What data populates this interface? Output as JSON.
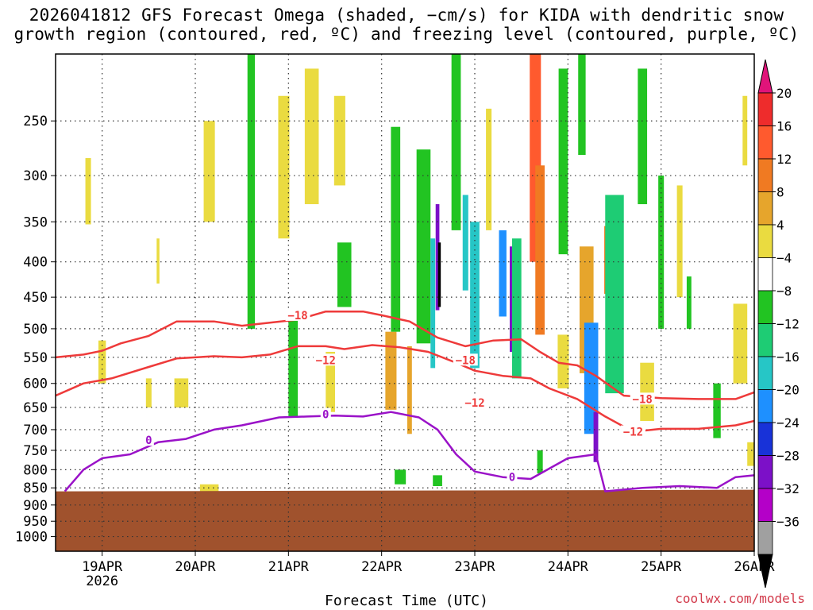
{
  "title": {
    "line1": "2026041812 GFS Forecast Omega (shaded, −cm/s) for KIDA with dendritic snow",
    "line2": "growth region (contoured, red, ºC) and freezing level (contoured, purple, ºC)"
  },
  "credit": "coolwx.com/models",
  "chart_data": {
    "type": "heatmap",
    "xlabel": "Forecast Time (UTC)",
    "ylabel": "",
    "x_ticks": [
      "19APR",
      "20APR",
      "21APR",
      "22APR",
      "23APR",
      "24APR",
      "25APR",
      "26APR"
    ],
    "x_tick_sub": [
      "2026",
      "",
      "",
      "",
      "",
      "",
      "",
      ""
    ],
    "x_range_days": [
      18.5,
      26.0
    ],
    "y_ticks": [
      250,
      300,
      350,
      400,
      450,
      500,
      550,
      600,
      650,
      700,
      750,
      800,
      850,
      900,
      950,
      1000
    ],
    "y_range_hpa": [
      200,
      1050
    ],
    "y_scale": "log-pressure",
    "terrain_top_hpa": 860,
    "grid": true,
    "colorbar": {
      "levels": [
        20,
        16,
        12,
        8,
        4,
        -4,
        -8,
        -12,
        -16,
        -20,
        -24,
        -28,
        -32,
        -36
      ],
      "labels": [
        "20",
        "16",
        "12",
        "8",
        "4",
        "−4",
        "−8",
        "−12",
        "−16",
        "−20",
        "−24",
        "−28",
        "−32",
        "−36"
      ],
      "colors": [
        "#e0147a",
        "#ee2c2c",
        "#ff5a2e",
        "#f07a22",
        "#e6a52c",
        "#eadb40",
        "#ffffff",
        "#22c422",
        "#1ecc74",
        "#26c6c6",
        "#1e90ff",
        "#1832d8",
        "#7c10c8",
        "#b400c8",
        "#a0a0a0",
        "#000000"
      ]
    },
    "series": [
      {
        "name": "-18",
        "color": "#ee3a3a",
        "points": [
          [
            18.5,
            550
          ],
          [
            18.8,
            545
          ],
          [
            19.0,
            538
          ],
          [
            19.2,
            525
          ],
          [
            19.5,
            512
          ],
          [
            19.8,
            488
          ],
          [
            20.2,
            488
          ],
          [
            20.5,
            495
          ],
          [
            20.8,
            490
          ],
          [
            21.1,
            485
          ],
          [
            21.4,
            472
          ],
          [
            21.8,
            472
          ],
          [
            22.0,
            478
          ],
          [
            22.3,
            488
          ],
          [
            22.6,
            515
          ],
          [
            22.9,
            530
          ],
          [
            23.2,
            520
          ],
          [
            23.5,
            518
          ],
          [
            23.7,
            540
          ],
          [
            23.9,
            560
          ],
          [
            24.1,
            565
          ],
          [
            24.3,
            585
          ],
          [
            24.6,
            625
          ],
          [
            25.0,
            630
          ],
          [
            25.4,
            632
          ],
          [
            25.8,
            632
          ],
          [
            26.0,
            618
          ]
        ]
      },
      {
        "name": "-12",
        "color": "#ee3a3a",
        "points": [
          [
            18.5,
            625
          ],
          [
            18.8,
            600
          ],
          [
            19.1,
            590
          ],
          [
            19.5,
            568
          ],
          [
            19.8,
            552
          ],
          [
            20.2,
            548
          ],
          [
            20.5,
            550
          ],
          [
            20.8,
            545
          ],
          [
            21.1,
            530
          ],
          [
            21.4,
            530
          ],
          [
            21.6,
            535
          ],
          [
            21.9,
            528
          ],
          [
            22.2,
            532
          ],
          [
            22.5,
            540
          ],
          [
            22.8,
            560
          ],
          [
            23.0,
            575
          ],
          [
            23.3,
            585
          ],
          [
            23.6,
            590
          ],
          [
            23.8,
            610
          ],
          [
            24.1,
            632
          ],
          [
            24.4,
            670
          ],
          [
            24.7,
            705
          ],
          [
            25.0,
            698
          ],
          [
            25.4,
            698
          ],
          [
            25.8,
            690
          ],
          [
            26.0,
            680
          ]
        ]
      },
      {
        "name": "0",
        "color": "#9a12c8",
        "points": [
          [
            18.6,
            860
          ],
          [
            18.8,
            800
          ],
          [
            19.0,
            770
          ],
          [
            19.3,
            760
          ],
          [
            19.6,
            730
          ],
          [
            19.9,
            722
          ],
          [
            20.2,
            700
          ],
          [
            20.5,
            690
          ],
          [
            20.9,
            672
          ],
          [
            21.2,
            670
          ],
          [
            21.5,
            668
          ],
          [
            21.8,
            670
          ],
          [
            22.1,
            660
          ],
          [
            22.4,
            672
          ],
          [
            22.6,
            700
          ],
          [
            22.8,
            760
          ],
          [
            23.0,
            805
          ],
          [
            23.3,
            820
          ],
          [
            23.6,
            825
          ],
          [
            24.0,
            770
          ],
          [
            24.3,
            760
          ],
          [
            24.4,
            860
          ],
          [
            24.8,
            850
          ],
          [
            25.2,
            845
          ],
          [
            25.6,
            850
          ],
          [
            25.8,
            820
          ],
          [
            26.0,
            815
          ]
        ]
      }
    ],
    "contour_labels": [
      {
        "text": "−18",
        "day": 21.1,
        "p": 478
      },
      {
        "text": "−18",
        "day": 22.9,
        "p": 555
      },
      {
        "text": "−18",
        "day": 24.8,
        "p": 632
      },
      {
        "text": "−12",
        "day": 21.4,
        "p": 555
      },
      {
        "text": "−12",
        "day": 23.0,
        "p": 640
      },
      {
        "text": "−12",
        "day": 24.7,
        "p": 705
      },
      {
        "text": "0",
        "day": 19.5,
        "p": 725
      },
      {
        "text": "0",
        "day": 21.4,
        "p": 665
      },
      {
        "text": "0",
        "day": 23.4,
        "p": 820
      }
    ],
    "shaded_cells": [
      [
        18.85,
        318,
        0.06,
        70,
        5
      ],
      [
        19.0,
        560,
        0.08,
        80,
        5
      ],
      [
        19.5,
        620,
        0.06,
        60,
        5
      ],
      [
        19.6,
        400,
        0.03,
        60,
        5
      ],
      [
        19.85,
        620,
        0.15,
        60,
        5
      ],
      [
        20.15,
        300,
        0.12,
        100,
        5
      ],
      [
        20.15,
        860,
        0.2,
        40,
        5
      ],
      [
        20.4,
        380,
        0.12,
        260,
        6
      ],
      [
        20.4,
        640,
        0.08,
        120,
        6
      ],
      [
        20.6,
        350,
        0.08,
        300,
        7
      ],
      [
        20.95,
        300,
        0.12,
        140,
        5
      ],
      [
        20.95,
        520,
        0.1,
        120,
        6
      ],
      [
        21.05,
        570,
        0.1,
        200,
        7
      ],
      [
        21.25,
        270,
        0.15,
        120,
        5
      ],
      [
        21.35,
        480,
        0.2,
        150,
        6
      ],
      [
        21.45,
        600,
        0.1,
        120,
        5
      ],
      [
        21.55,
        270,
        0.12,
        80,
        5
      ],
      [
        21.6,
        420,
        0.15,
        90,
        7
      ],
      [
        21.7,
        680,
        0.12,
        90,
        6
      ],
      [
        22.0,
        520,
        0.1,
        110,
        6
      ],
      [
        22.1,
        580,
        0.12,
        150,
        4
      ],
      [
        22.15,
        380,
        0.1,
        250,
        7
      ],
      [
        22.3,
        620,
        0.05,
        180,
        4
      ],
      [
        22.45,
        400,
        0.15,
        250,
        7
      ],
      [
        22.55,
        470,
        0.05,
        200,
        9
      ],
      [
        22.6,
        400,
        0.04,
        140,
        12
      ],
      [
        22.62,
        420,
        0.03,
        90,
        15
      ],
      [
        22.8,
        280,
        0.1,
        160,
        7
      ],
      [
        22.9,
        380,
        0.06,
        120,
        9
      ],
      [
        23.0,
        460,
        0.1,
        220,
        9
      ],
      [
        23.15,
        300,
        0.06,
        120,
        5
      ],
      [
        23.3,
        420,
        0.08,
        120,
        10
      ],
      [
        23.4,
        460,
        0.05,
        160,
        12
      ],
      [
        23.45,
        480,
        0.1,
        220,
        8
      ],
      [
        23.65,
        300,
        0.12,
        200,
        2
      ],
      [
        23.7,
        400,
        0.1,
        220,
        3
      ],
      [
        23.95,
        300,
        0.1,
        180,
        7
      ],
      [
        23.95,
        560,
        0.12,
        100,
        5
      ],
      [
        24.15,
        240,
        0.08,
        80,
        7
      ],
      [
        24.2,
        480,
        0.15,
        200,
        4
      ],
      [
        24.25,
        600,
        0.15,
        220,
        10
      ],
      [
        24.3,
        720,
        0.05,
        120,
        12
      ],
      [
        24.45,
        400,
        0.12,
        90,
        3
      ],
      [
        24.5,
        470,
        0.2,
        300,
        8
      ],
      [
        24.8,
        270,
        0.1,
        120,
        7
      ],
      [
        24.85,
        620,
        0.15,
        120,
        5
      ],
      [
        25.0,
        400,
        0.06,
        200,
        7
      ],
      [
        25.2,
        380,
        0.06,
        140,
        5
      ],
      [
        25.3,
        460,
        0.05,
        80,
        7
      ],
      [
        25.6,
        660,
        0.08,
        120,
        7
      ],
      [
        25.85,
        530,
        0.15,
        140,
        5
      ],
      [
        25.9,
        260,
        0.05,
        60,
        5
      ],
      [
        26.0,
        760,
        0.15,
        60,
        5
      ],
      [
        23.7,
        780,
        0.06,
        60,
        7
      ],
      [
        24.2,
        780,
        0.06,
        40,
        6
      ],
      [
        22.2,
        820,
        0.12,
        40,
        7
      ],
      [
        22.6,
        830,
        0.1,
        30,
        7
      ],
      [
        23.2,
        820,
        0.1,
        40,
        6
      ]
    ]
  }
}
